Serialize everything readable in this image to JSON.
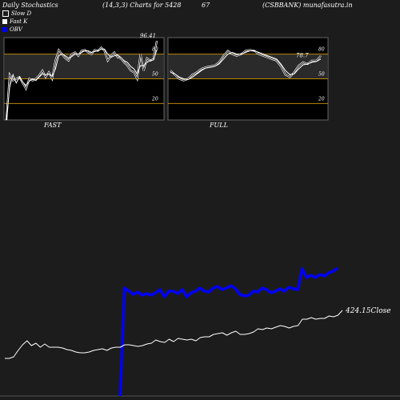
{
  "header": {
    "title": "Daily Stochastics",
    "params": "(14,3,3) Charts for 5428",
    "code": "67",
    "symbol": "(CSBBANK) munafasutra.in"
  },
  "legend": [
    {
      "label": "Slow  D",
      "color": "#ffffff"
    },
    {
      "label": "Fast K",
      "color": "#ffffff"
    },
    {
      "label": "OBV",
      "color": "#0000ff"
    }
  ],
  "chart_data": [
    {
      "type": "line",
      "title": "FAST",
      "ylim": [
        0,
        100
      ],
      "yticks": [
        "80",
        "50",
        "20"
      ],
      "reference_lines": [
        80,
        50,
        20
      ],
      "last_value_label": "96.41",
      "series": [
        {
          "values": [
            0,
            55,
            48,
            50,
            52,
            45,
            38,
            50,
            48,
            50,
            54,
            60,
            52,
            58,
            50,
            72,
            85,
            80,
            75,
            72,
            80,
            82,
            78,
            84,
            85,
            82,
            80,
            85,
            84,
            88,
            84,
            72,
            78,
            82,
            76,
            75,
            70,
            66,
            60,
            58,
            50,
            80,
            60,
            75,
            72,
            74,
            96
          ]
        },
        {
          "values": [
            0,
            40,
            55,
            45,
            52,
            46,
            42,
            47,
            50,
            48,
            52,
            56,
            55,
            56,
            53,
            62,
            78,
            80,
            78,
            75,
            77,
            80,
            80,
            82,
            84,
            84,
            82,
            83,
            84,
            86,
            86,
            80,
            76,
            78,
            79,
            76,
            72,
            70,
            65,
            62,
            56,
            66,
            66,
            70,
            72,
            73,
            85
          ]
        }
      ]
    },
    {
      "type": "line",
      "title": "FULL",
      "ylim": [
        0,
        100
      ],
      "yticks": [
        "80",
        "50",
        "20"
      ],
      "reference_lines": [
        80,
        50,
        20
      ],
      "last_value_label": "78.7",
      "series": [
        {
          "values": [
            60,
            55,
            50,
            48,
            50,
            55,
            58,
            62,
            64,
            65,
            66,
            70,
            78,
            84,
            80,
            78,
            80,
            84,
            85,
            84,
            80,
            78,
            76,
            74,
            72,
            65,
            55,
            52,
            58,
            66,
            70,
            68,
            72,
            72,
            78
          ]
        },
        {
          "values": [
            58,
            56,
            52,
            50,
            49,
            52,
            56,
            60,
            63,
            64,
            65,
            68,
            74,
            80,
            82,
            80,
            80,
            82,
            84,
            84,
            82,
            80,
            78,
            76,
            74,
            68,
            60,
            55,
            56,
            62,
            67,
            68,
            70,
            71,
            74
          ]
        }
      ]
    },
    {
      "type": "line",
      "last_value_label": "424.15",
      "label_suffix": "Close",
      "series": [
        {
          "name": "OBV",
          "color": "#0000ff",
          "values": [
            null,
            null,
            null,
            null,
            null,
            null,
            null,
            null,
            null,
            null,
            null,
            null,
            null,
            null,
            null,
            null,
            null,
            null,
            null,
            null,
            null,
            null,
            null,
            null,
            null,
            null,
            -10,
            125,
            121,
            117,
            120,
            116,
            118,
            116,
            119,
            123,
            114,
            121,
            121,
            118,
            123,
            114,
            119,
            121,
            125,
            121,
            120,
            125,
            127,
            123,
            125,
            128,
            124,
            117,
            115,
            116,
            121,
            120,
            125,
            123,
            119,
            121,
            124,
            121,
            126,
            124,
            123,
            149,
            138,
            141,
            138,
            142,
            140,
            144,
            146,
            150
          ]
        },
        {
          "name": "Close",
          "color": "#ffffff",
          "values": [
            37,
            37,
            39,
            47,
            54,
            59,
            53,
            56,
            51,
            55,
            51,
            51,
            51,
            50,
            48,
            47,
            45,
            44,
            44,
            45,
            47,
            48,
            49,
            47,
            50,
            51,
            51,
            54,
            54,
            53,
            52,
            53,
            55,
            56,
            60,
            58,
            57,
            61,
            58,
            62,
            61,
            60,
            61,
            59,
            63,
            64,
            64,
            67,
            68,
            69,
            66,
            69,
            71,
            67,
            67,
            68,
            70,
            74,
            73,
            75,
            74,
            76,
            78,
            77,
            75,
            77,
            78,
            86,
            86,
            88,
            86,
            87,
            87,
            90,
            89,
            91,
            97
          ]
        }
      ]
    }
  ]
}
